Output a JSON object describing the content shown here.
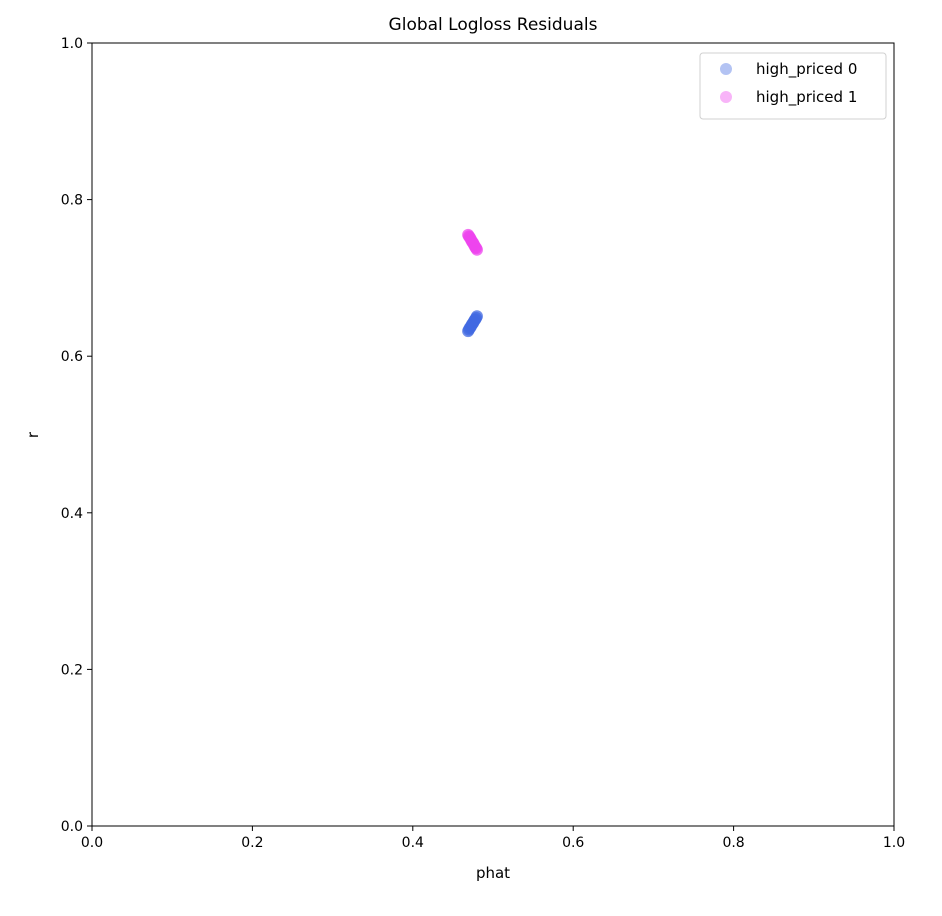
{
  "chart_data": {
    "type": "scatter",
    "title": "Global Logloss Residuals",
    "xlabel": "phat",
    "ylabel": "r",
    "xlim": [
      0.0,
      1.0
    ],
    "ylim": [
      0.0,
      1.0
    ],
    "xticks": [
      "0.0",
      "0.2",
      "0.4",
      "0.6",
      "0.8",
      "1.0"
    ],
    "yticks": [
      "0.0",
      "0.2",
      "0.4",
      "0.6",
      "0.8",
      "1.0"
    ],
    "grid": false,
    "legend_position": "top-right",
    "series": [
      {
        "name": "high_priced 0",
        "color": "#4169e1",
        "x": [
          0.469,
          0.47,
          0.471,
          0.472,
          0.473,
          0.474,
          0.475,
          0.476,
          0.477,
          0.478,
          0.479,
          0.48
        ],
        "y": [
          0.632,
          0.634,
          0.636,
          0.637,
          0.639,
          0.641,
          0.642,
          0.644,
          0.646,
          0.647,
          0.649,
          0.651
        ]
      },
      {
        "name": "high_priced 1",
        "color": "#ee44ee",
        "x": [
          0.469,
          0.47,
          0.471,
          0.472,
          0.473,
          0.474,
          0.475,
          0.476,
          0.477,
          0.478,
          0.479,
          0.48
        ],
        "y": [
          0.755,
          0.753,
          0.752,
          0.75,
          0.748,
          0.746,
          0.745,
          0.743,
          0.741,
          0.739,
          0.738,
          0.736
        ]
      }
    ]
  }
}
